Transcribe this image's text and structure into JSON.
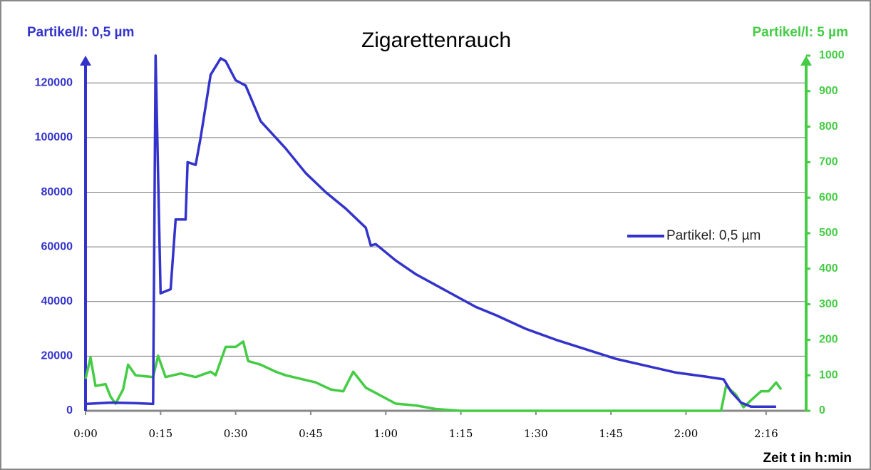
{
  "chart_data": {
    "type": "line",
    "title": "Zigarettenrauch",
    "y_label": "Partikel/l: 0,5 µm",
    "y2_label": "Partikel/l: 5 µm",
    "x_label": "Zeit t in h:min",
    "xlim": [
      0,
      144
    ],
    "xticks": [
      {
        "value": 0,
        "label": "0:00"
      },
      {
        "value": 15,
        "label": "0:15"
      },
      {
        "value": 30,
        "label": "0:30"
      },
      {
        "value": 45,
        "label": "0:45"
      },
      {
        "value": 60,
        "label": "1:00"
      },
      {
        "value": 75,
        "label": "1:15"
      },
      {
        "value": 90,
        "label": "1:30"
      },
      {
        "value": 105,
        "label": "1:45"
      },
      {
        "value": 120,
        "label": "2:00"
      },
      {
        "value": 136,
        "label": "2:16"
      }
    ],
    "ylim": [
      0,
      130000
    ],
    "yticks": [
      0,
      20000,
      40000,
      60000,
      80000,
      100000,
      120000
    ],
    "y2lim": [
      0,
      1000
    ],
    "y2ticks": [
      0,
      100,
      200,
      300,
      400,
      500,
      600,
      700,
      800,
      900,
      1000
    ],
    "grid": true,
    "y_color": "#3333cc",
    "y2_color": "#44cc44",
    "series": [
      {
        "name": "Partikel: 0,5 µm",
        "color": "#3333cc",
        "axis": "y",
        "legend": true,
        "x": [
          0,
          5,
          10,
          13.5,
          14,
          15,
          17,
          18,
          20,
          20.4,
          22,
          23,
          25,
          27,
          28,
          30,
          32,
          35,
          40,
          44,
          48,
          52,
          56,
          57,
          58,
          62,
          66,
          70,
          74,
          78,
          82,
          88,
          94,
          100,
          106,
          112,
          118,
          124,
          127.5,
          129,
          131,
          133,
          138
        ],
        "values": [
          2500,
          3000,
          2800,
          2500,
          130000,
          43000,
          44500,
          70000,
          70000,
          91000,
          90000,
          100000,
          123000,
          129000,
          128000,
          121000,
          119000,
          106000,
          96000,
          87000,
          80000,
          74000,
          67000,
          60500,
          61000,
          55000,
          50000,
          46000,
          42000,
          38000,
          35000,
          30000,
          26000,
          22500,
          19000,
          16500,
          14000,
          12500,
          11500,
          7000,
          3000,
          1500,
          1500
        ]
      },
      {
        "name": "Partikel: 5 µm",
        "color": "#44cc44",
        "axis": "y2",
        "legend": false,
        "x": [
          0,
          1,
          2,
          4,
          5,
          6,
          7.5,
          8.5,
          10,
          13.5,
          14.5,
          16,
          19,
          22,
          25,
          26,
          28,
          30,
          31.5,
          32.5,
          35,
          38,
          40,
          43,
          46,
          49,
          51.5,
          53.5,
          56,
          60,
          62,
          66,
          70,
          75,
          127,
          128,
          130,
          131.5,
          133,
          135,
          136.5,
          138,
          139
        ],
        "values": [
          90,
          150,
          70,
          75,
          40,
          20,
          60,
          130,
          100,
          95,
          155,
          95,
          105,
          95,
          110,
          100,
          180,
          180,
          195,
          140,
          130,
          110,
          100,
          90,
          80,
          60,
          55,
          110,
          65,
          35,
          20,
          15,
          5,
          0,
          0,
          70,
          45,
          10,
          30,
          55,
          55,
          80,
          60
        ]
      }
    ]
  }
}
